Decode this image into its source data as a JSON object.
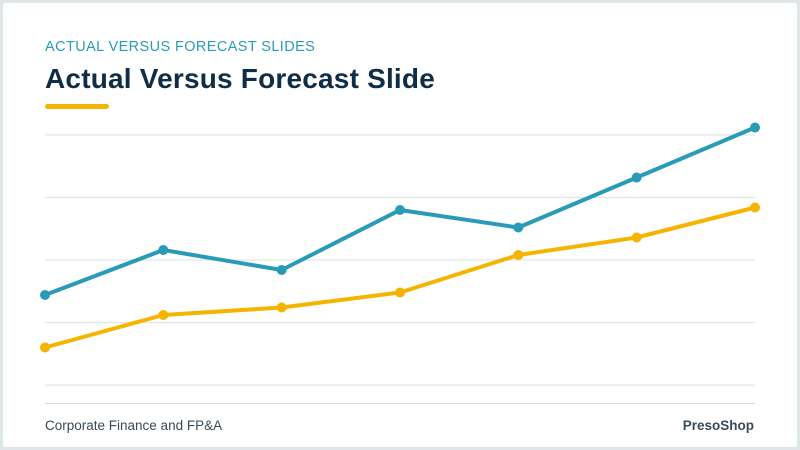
{
  "slide": {
    "kicker": "ACTUAL VERSUS FORECAST SLIDES",
    "title": "Actual Versus Forecast Slide"
  },
  "footer": {
    "left": "Corporate Finance and FP&A",
    "right": "PresoShop"
  },
  "colors": {
    "accent_blue": "#2a9bb7",
    "accent_yellow": "#f4b400",
    "title_navy": "#0f2d45"
  },
  "chart_data": {
    "type": "line",
    "title": "",
    "xlabel": "",
    "ylabel": "",
    "grid": true,
    "legend": "none",
    "x": [
      1,
      2,
      3,
      4,
      5,
      6,
      7
    ],
    "ylim": [
      0,
      100
    ],
    "series": [
      {
        "color": "#2a9bb7",
        "values": [
          36,
          54,
          46,
          70,
          63,
          83,
          103
        ]
      },
      {
        "color": "#f4b400",
        "values": [
          15,
          28,
          31,
          37,
          52,
          59,
          71
        ]
      }
    ]
  }
}
